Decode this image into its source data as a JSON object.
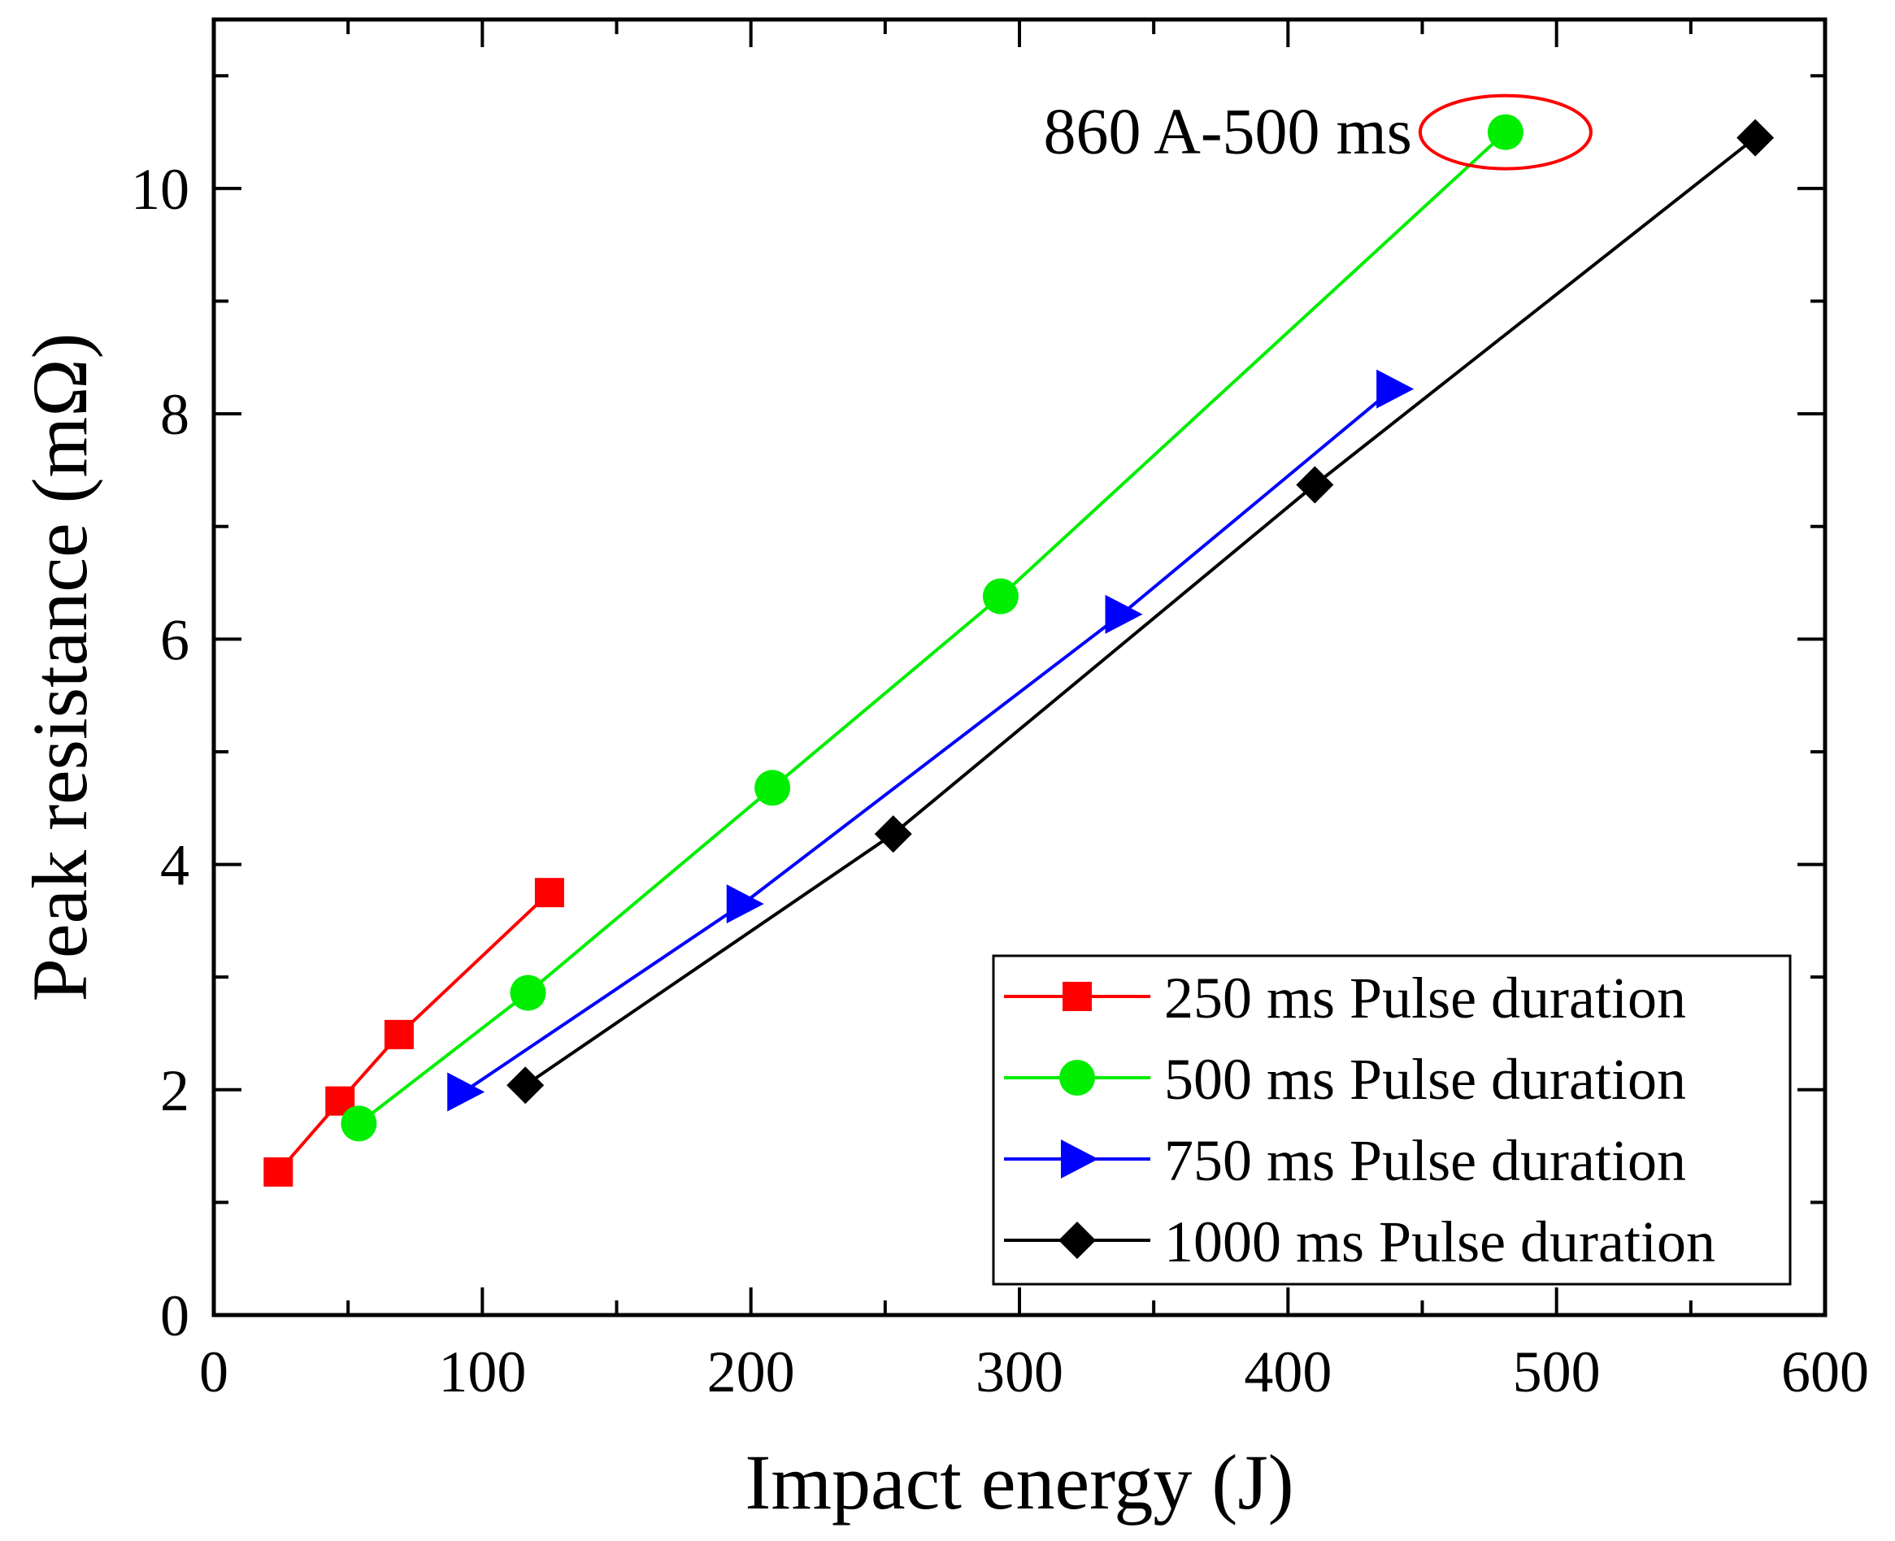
{
  "chart_data": {
    "type": "line",
    "xlabel": "Impact energy (J)",
    "ylabel": "Peak resistance (mΩ)",
    "xlim": [
      0,
      600
    ],
    "ylim": [
      0,
      11.5
    ],
    "xticks": [
      0,
      100,
      200,
      300,
      400,
      500,
      600
    ],
    "xtick_labels": [
      "0",
      "100",
      "200",
      "300",
      "400",
      "500",
      "600"
    ],
    "yticks": [
      0,
      2,
      4,
      6,
      8,
      10
    ],
    "ytick_labels": [
      "0",
      "2",
      "4",
      "6",
      "8",
      "10"
    ],
    "grid": false,
    "legend_position": "bottom-right",
    "series": [
      {
        "name": "250 ms Pulse duration",
        "color": "#ff0000",
        "marker": "square",
        "x": [
          24,
          47,
          69,
          125
        ],
        "y": [
          1.27,
          1.9,
          2.49,
          3.75
        ]
      },
      {
        "name": "500 ms Pulse duration",
        "color": "#00ee00",
        "marker": "circle",
        "x": [
          54,
          117,
          208,
          293,
          481
        ],
        "y": [
          1.7,
          2.86,
          4.68,
          6.38,
          10.5
        ]
      },
      {
        "name": "750 ms Pulse duration",
        "color": "#0000ff",
        "marker": "triangle-right",
        "x": [
          93,
          197,
          338,
          439
        ],
        "y": [
          1.98,
          3.65,
          6.22,
          8.22
        ]
      },
      {
        "name": "1000 ms Pulse duration",
        "color": "#000000",
        "marker": "diamond",
        "x": [
          116,
          253,
          410,
          574
        ],
        "y": [
          2.04,
          4.27,
          7.37,
          10.45
        ]
      }
    ],
    "annotation": {
      "text": "860 A-500 ms",
      "target_x": 481,
      "target_y": 10.5,
      "highlight_color": "#ff0000"
    }
  }
}
